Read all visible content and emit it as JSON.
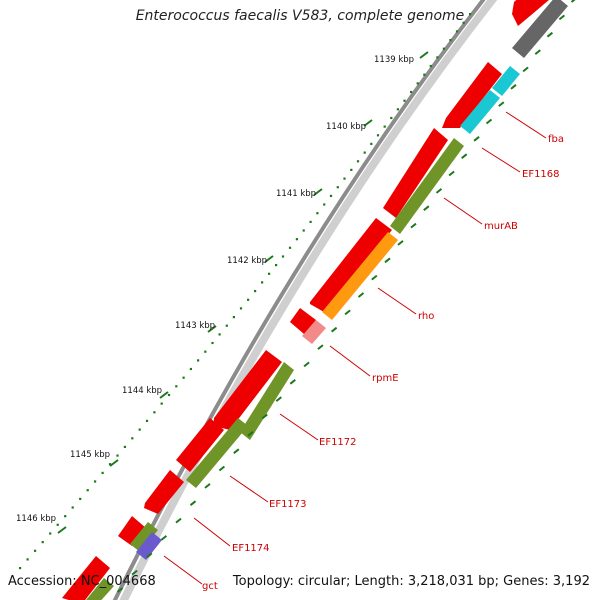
{
  "title": "Enterococcus faecalis V583, complete genome",
  "footer": {
    "accession": "Accession: NC_004668",
    "stats": "Topology: circular; Length: 3,218,031 bp; Genes: 3,192"
  },
  "kbp_labels": [
    "1139 kbp",
    "1140 kbp",
    "1141 kbp",
    "1142 kbp",
    "1143 kbp",
    "1144 kbp",
    "1145 kbp",
    "1146 kbp"
  ],
  "gene_labels": [
    "fba",
    "EF1168",
    "murAB",
    "rho",
    "rpmE",
    "EF1172",
    "EF1173",
    "EF1174",
    "gct"
  ],
  "colors": {
    "backbone": "#8c8c8c",
    "cds": "#ee0000",
    "tick": "#1a7a1a",
    "label_red": "#cc0000",
    "fba": "#19c8d2",
    "EF1168": "#19c8d2",
    "murAB": "#6f9428",
    "rho": "#ff9a10",
    "rpmE": "#f28a8a",
    "EF1172": "#6f9428",
    "EF1173": "#6f9428",
    "EF1174": "#6f9428",
    "gct": "#6a5acd",
    "grey_gene": "#666666"
  }
}
